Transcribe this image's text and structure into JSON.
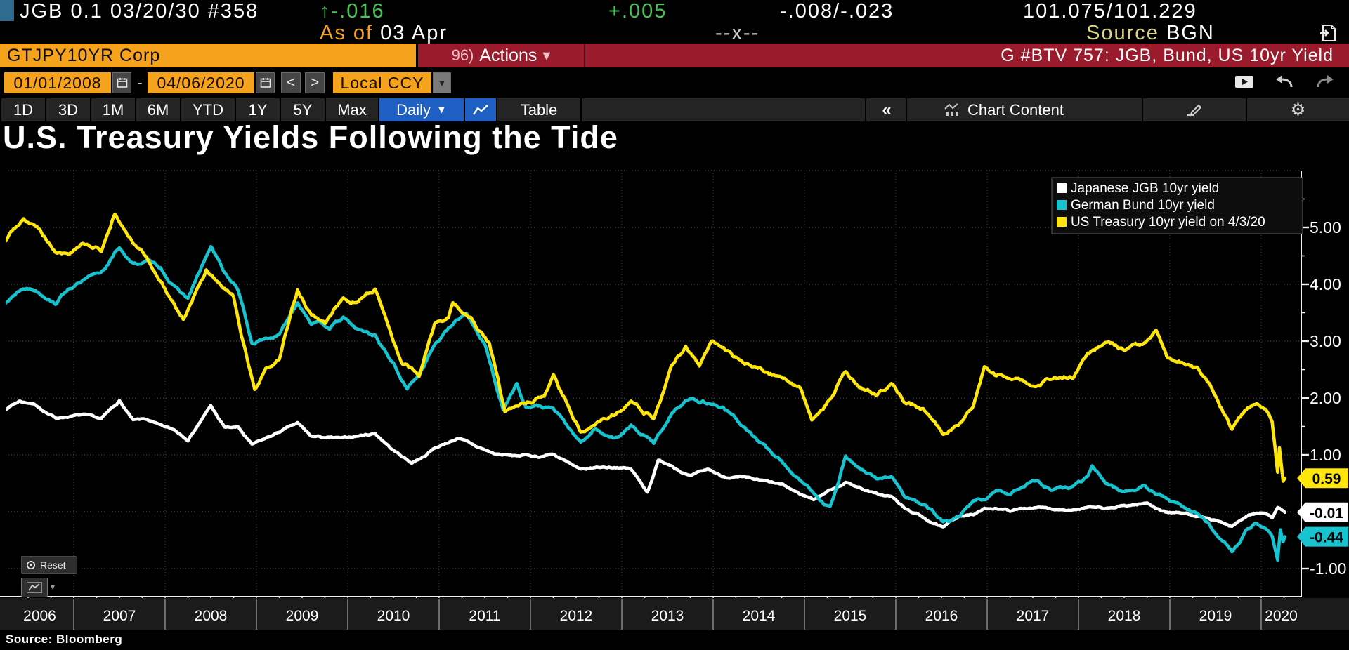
{
  "icons": {
    "caret_down": "▼",
    "caret_small": "▾",
    "chevrons_left": "«",
    "gear": "⚙",
    "prev": "<",
    "next": ">",
    "dash": "-"
  },
  "top_bar": {
    "security_desc": "JGB 0.1 03/20/30 #358",
    "change": "↑-.016",
    "change2": "+.005",
    "bid_ask_change": "-.008/-.023",
    "price": "101.075/101.229",
    "as_of_label": "As of ",
    "as_of_date": "03 Apr",
    "mid_marker": "--x--",
    "source_label": "Source ",
    "source_value": "BGN"
  },
  "security_bar": {
    "ticker": "GTJPY10YR Corp",
    "actions_num": "96)",
    "actions_label": "Actions",
    "chart_ref": "G #BTV 757: JGB, Bund, US 10yr Yield"
  },
  "date_bar": {
    "start_date": "01/01/2008",
    "end_date": "04/06/2020",
    "currency": "Local CCY"
  },
  "toolbar": {
    "ranges": [
      "1D",
      "3D",
      "1M",
      "6M",
      "YTD",
      "1Y",
      "5Y",
      "Max"
    ],
    "period": "Daily",
    "table_label": "Table",
    "chart_content_label": "Chart Content"
  },
  "chart": {
    "reset_label": "Reset",
    "source_note": "Source: Bloomberg"
  },
  "chart_data": {
    "type": "line",
    "title": "U.S. Treasury Yields Following the Tide",
    "grid": "dotted",
    "legend_position": "top-right",
    "x_axis": {
      "start": 2006.0,
      "end": 2020.27,
      "years": [
        "2006",
        "2007",
        "2008",
        "2009",
        "2010",
        "2011",
        "2012",
        "2013",
        "2014",
        "2015",
        "2016",
        "2017",
        "2018",
        "2019",
        "2020"
      ]
    },
    "y_axis": {
      "min": -1.45,
      "max": 6.15,
      "minor_step": 0.5,
      "label_ticks": [
        {
          "value": 5,
          "label": "5.00"
        },
        {
          "value": 4,
          "label": "4.00"
        },
        {
          "value": 3,
          "label": "3.00"
        },
        {
          "value": 2,
          "label": "2.00"
        },
        {
          "value": 1,
          "label": "1.00"
        },
        {
          "value": -1,
          "label": "-1.00"
        }
      ]
    },
    "series": [
      {
        "name": "Japanese JGB 10yr yield",
        "color": "#ffffff",
        "badge": "-0.01",
        "badge_text_color": "#000000",
        "last_value": -0.01,
        "wiggle": 0.022,
        "seed": 7,
        "points": [
          [
            2006.0,
            1.47
          ],
          [
            2006.2,
            1.75
          ],
          [
            2006.4,
            1.96
          ],
          [
            2006.6,
            1.85
          ],
          [
            2006.8,
            1.65
          ],
          [
            2006.95,
            1.68
          ],
          [
            2007.1,
            1.7
          ],
          [
            2007.3,
            1.62
          ],
          [
            2007.5,
            1.95
          ],
          [
            2007.65,
            1.6
          ],
          [
            2007.8,
            1.62
          ],
          [
            2007.95,
            1.5
          ],
          [
            2008.1,
            1.43
          ],
          [
            2008.25,
            1.28
          ],
          [
            2008.5,
            1.86
          ],
          [
            2008.65,
            1.48
          ],
          [
            2008.8,
            1.48
          ],
          [
            2008.95,
            1.17
          ],
          [
            2009.1,
            1.28
          ],
          [
            2009.3,
            1.44
          ],
          [
            2009.45,
            1.55
          ],
          [
            2009.6,
            1.32
          ],
          [
            2009.8,
            1.3
          ],
          [
            2009.95,
            1.28
          ],
          [
            2010.1,
            1.33
          ],
          [
            2010.3,
            1.38
          ],
          [
            2010.5,
            1.08
          ],
          [
            2010.7,
            0.86
          ],
          [
            2010.85,
            1.0
          ],
          [
            2010.95,
            1.12
          ],
          [
            2011.1,
            1.22
          ],
          [
            2011.2,
            1.3
          ],
          [
            2011.4,
            1.15
          ],
          [
            2011.6,
            1.02
          ],
          [
            2011.8,
            0.98
          ],
          [
            2011.95,
            0.99
          ],
          [
            2012.1,
            0.97
          ],
          [
            2012.25,
            1.02
          ],
          [
            2012.55,
            0.72
          ],
          [
            2012.75,
            0.78
          ],
          [
            2012.95,
            0.79
          ],
          [
            2013.1,
            0.75
          ],
          [
            2013.28,
            0.35
          ],
          [
            2013.4,
            0.9
          ],
          [
            2013.55,
            0.82
          ],
          [
            2013.75,
            0.62
          ],
          [
            2013.95,
            0.74
          ],
          [
            2014.1,
            0.62
          ],
          [
            2014.3,
            0.6
          ],
          [
            2014.55,
            0.53
          ],
          [
            2014.75,
            0.47
          ],
          [
            2014.95,
            0.31
          ],
          [
            2015.1,
            0.22
          ],
          [
            2015.3,
            0.4
          ],
          [
            2015.45,
            0.52
          ],
          [
            2015.6,
            0.43
          ],
          [
            2015.8,
            0.3
          ],
          [
            2015.95,
            0.27
          ],
          [
            2016.1,
            0.05
          ],
          [
            2016.3,
            -0.1
          ],
          [
            2016.52,
            -0.29
          ],
          [
            2016.7,
            -0.06
          ],
          [
            2016.85,
            -0.05
          ],
          [
            2016.97,
            0.04
          ],
          [
            2017.1,
            0.07
          ],
          [
            2017.25,
            0.02
          ],
          [
            2017.5,
            0.08
          ],
          [
            2017.7,
            0.05
          ],
          [
            2017.95,
            0.05
          ],
          [
            2018.1,
            0.08
          ],
          [
            2018.3,
            0.04
          ],
          [
            2018.5,
            0.1
          ],
          [
            2018.75,
            0.15
          ],
          [
            2018.95,
            0.0
          ],
          [
            2019.1,
            -0.02
          ],
          [
            2019.3,
            -0.06
          ],
          [
            2019.5,
            -0.16
          ],
          [
            2019.68,
            -0.28
          ],
          [
            2019.85,
            -0.08
          ],
          [
            2019.95,
            -0.02
          ],
          [
            2020.05,
            -0.05
          ],
          [
            2020.12,
            -0.12
          ],
          [
            2020.18,
            0.06
          ],
          [
            2020.22,
            0.02
          ],
          [
            2020.26,
            -0.01
          ]
        ]
      },
      {
        "name": "German Bund 10yr yield",
        "color": "#17c3cf",
        "badge": "-0.44",
        "badge_text_color": "#000000",
        "last_value": -0.44,
        "wiggle": 0.042,
        "seed": 13,
        "points": [
          [
            2006.0,
            3.3
          ],
          [
            2006.2,
            3.6
          ],
          [
            2006.45,
            3.98
          ],
          [
            2006.6,
            3.9
          ],
          [
            2006.8,
            3.7
          ],
          [
            2006.95,
            3.95
          ],
          [
            2007.1,
            4.05
          ],
          [
            2007.3,
            4.2
          ],
          [
            2007.5,
            4.65
          ],
          [
            2007.65,
            4.35
          ],
          [
            2007.8,
            4.4
          ],
          [
            2007.95,
            4.3
          ],
          [
            2008.1,
            3.95
          ],
          [
            2008.25,
            3.75
          ],
          [
            2008.5,
            4.65
          ],
          [
            2008.65,
            4.2
          ],
          [
            2008.8,
            3.9
          ],
          [
            2008.95,
            2.95
          ],
          [
            2009.1,
            3.05
          ],
          [
            2009.25,
            3.1
          ],
          [
            2009.45,
            3.7
          ],
          [
            2009.6,
            3.35
          ],
          [
            2009.8,
            3.25
          ],
          [
            2009.95,
            3.4
          ],
          [
            2010.1,
            3.2
          ],
          [
            2010.3,
            3.1
          ],
          [
            2010.5,
            2.6
          ],
          [
            2010.65,
            2.15
          ],
          [
            2010.8,
            2.5
          ],
          [
            2010.95,
            2.95
          ],
          [
            2011.1,
            3.2
          ],
          [
            2011.3,
            3.5
          ],
          [
            2011.5,
            2.95
          ],
          [
            2011.7,
            1.8
          ],
          [
            2011.85,
            2.25
          ],
          [
            2011.95,
            1.85
          ],
          [
            2012.1,
            1.85
          ],
          [
            2012.25,
            1.8
          ],
          [
            2012.55,
            1.2
          ],
          [
            2012.7,
            1.45
          ],
          [
            2012.95,
            1.3
          ],
          [
            2013.1,
            1.5
          ],
          [
            2013.35,
            1.2
          ],
          [
            2013.55,
            1.75
          ],
          [
            2013.7,
            2.0
          ],
          [
            2013.95,
            1.93
          ],
          [
            2014.1,
            1.85
          ],
          [
            2014.3,
            1.55
          ],
          [
            2014.55,
            1.15
          ],
          [
            2014.75,
            0.9
          ],
          [
            2014.95,
            0.54
          ],
          [
            2015.1,
            0.35
          ],
          [
            2015.28,
            0.08
          ],
          [
            2015.45,
            0.98
          ],
          [
            2015.6,
            0.75
          ],
          [
            2015.8,
            0.55
          ],
          [
            2015.95,
            0.63
          ],
          [
            2016.1,
            0.25
          ],
          [
            2016.3,
            0.12
          ],
          [
            2016.52,
            -0.19
          ],
          [
            2016.7,
            -0.1
          ],
          [
            2016.85,
            0.15
          ],
          [
            2016.97,
            0.22
          ],
          [
            2017.1,
            0.35
          ],
          [
            2017.25,
            0.32
          ],
          [
            2017.5,
            0.58
          ],
          [
            2017.7,
            0.4
          ],
          [
            2017.95,
            0.43
          ],
          [
            2018.1,
            0.6
          ],
          [
            2018.15,
            0.77
          ],
          [
            2018.3,
            0.5
          ],
          [
            2018.5,
            0.35
          ],
          [
            2018.7,
            0.45
          ],
          [
            2018.95,
            0.24
          ],
          [
            2019.1,
            0.12
          ],
          [
            2019.3,
            -0.02
          ],
          [
            2019.5,
            -0.35
          ],
          [
            2019.68,
            -0.72
          ],
          [
            2019.85,
            -0.3
          ],
          [
            2019.95,
            -0.19
          ],
          [
            2020.05,
            -0.28
          ],
          [
            2020.12,
            -0.45
          ],
          [
            2020.18,
            -0.86
          ],
          [
            2020.21,
            -0.3
          ],
          [
            2020.24,
            -0.5
          ],
          [
            2020.26,
            -0.44
          ]
        ]
      },
      {
        "name": "US Treasury 10yr yield on 4/3/20",
        "color": "#ffe60a",
        "badge": "0.59",
        "badge_text_color": "#000000",
        "last_value": 0.59,
        "wiggle": 0.05,
        "seed": 29,
        "points": [
          [
            2006.0,
            4.4
          ],
          [
            2006.2,
            4.65
          ],
          [
            2006.45,
            5.2
          ],
          [
            2006.6,
            5.0
          ],
          [
            2006.8,
            4.6
          ],
          [
            2006.95,
            4.55
          ],
          [
            2007.1,
            4.7
          ],
          [
            2007.3,
            4.6
          ],
          [
            2007.45,
            5.25
          ],
          [
            2007.6,
            4.8
          ],
          [
            2007.8,
            4.45
          ],
          [
            2007.95,
            4.05
          ],
          [
            2008.1,
            3.65
          ],
          [
            2008.2,
            3.4
          ],
          [
            2008.45,
            4.25
          ],
          [
            2008.6,
            3.95
          ],
          [
            2008.75,
            3.75
          ],
          [
            2008.85,
            3.0
          ],
          [
            2008.98,
            2.1
          ],
          [
            2009.1,
            2.45
          ],
          [
            2009.25,
            2.7
          ],
          [
            2009.45,
            3.9
          ],
          [
            2009.6,
            3.45
          ],
          [
            2009.75,
            3.3
          ],
          [
            2009.95,
            3.8
          ],
          [
            2010.1,
            3.7
          ],
          [
            2010.3,
            3.95
          ],
          [
            2010.5,
            2.95
          ],
          [
            2010.6,
            2.6
          ],
          [
            2010.78,
            2.4
          ],
          [
            2010.95,
            3.3
          ],
          [
            2011.1,
            3.4
          ],
          [
            2011.15,
            3.7
          ],
          [
            2011.35,
            3.45
          ],
          [
            2011.55,
            2.95
          ],
          [
            2011.72,
            1.75
          ],
          [
            2011.95,
            1.9
          ],
          [
            2012.15,
            2.0
          ],
          [
            2012.25,
            2.35
          ],
          [
            2012.55,
            1.4
          ],
          [
            2012.75,
            1.65
          ],
          [
            2012.95,
            1.75
          ],
          [
            2013.1,
            1.9
          ],
          [
            2013.35,
            1.65
          ],
          [
            2013.55,
            2.55
          ],
          [
            2013.7,
            2.9
          ],
          [
            2013.85,
            2.6
          ],
          [
            2013.98,
            3.0
          ],
          [
            2014.1,
            2.9
          ],
          [
            2014.3,
            2.65
          ],
          [
            2014.55,
            2.5
          ],
          [
            2014.75,
            2.35
          ],
          [
            2014.95,
            2.2
          ],
          [
            2015.08,
            1.65
          ],
          [
            2015.25,
            1.95
          ],
          [
            2015.45,
            2.45
          ],
          [
            2015.6,
            2.2
          ],
          [
            2015.8,
            2.05
          ],
          [
            2015.95,
            2.27
          ],
          [
            2016.1,
            1.9
          ],
          [
            2016.3,
            1.8
          ],
          [
            2016.52,
            1.37
          ],
          [
            2016.7,
            1.55
          ],
          [
            2016.85,
            1.85
          ],
          [
            2016.97,
            2.55
          ],
          [
            2017.1,
            2.4
          ],
          [
            2017.25,
            2.35
          ],
          [
            2017.5,
            2.2
          ],
          [
            2017.7,
            2.33
          ],
          [
            2017.95,
            2.4
          ],
          [
            2018.1,
            2.75
          ],
          [
            2018.3,
            2.95
          ],
          [
            2018.5,
            2.85
          ],
          [
            2018.7,
            2.95
          ],
          [
            2018.85,
            3.22
          ],
          [
            2018.98,
            2.7
          ],
          [
            2019.1,
            2.65
          ],
          [
            2019.3,
            2.5
          ],
          [
            2019.5,
            2.0
          ],
          [
            2019.68,
            1.47
          ],
          [
            2019.82,
            1.75
          ],
          [
            2019.95,
            1.9
          ],
          [
            2020.05,
            1.8
          ],
          [
            2020.12,
            1.55
          ],
          [
            2020.18,
            0.7
          ],
          [
            2020.2,
            1.15
          ],
          [
            2020.24,
            0.6
          ],
          [
            2020.26,
            0.59
          ]
        ]
      }
    ]
  }
}
